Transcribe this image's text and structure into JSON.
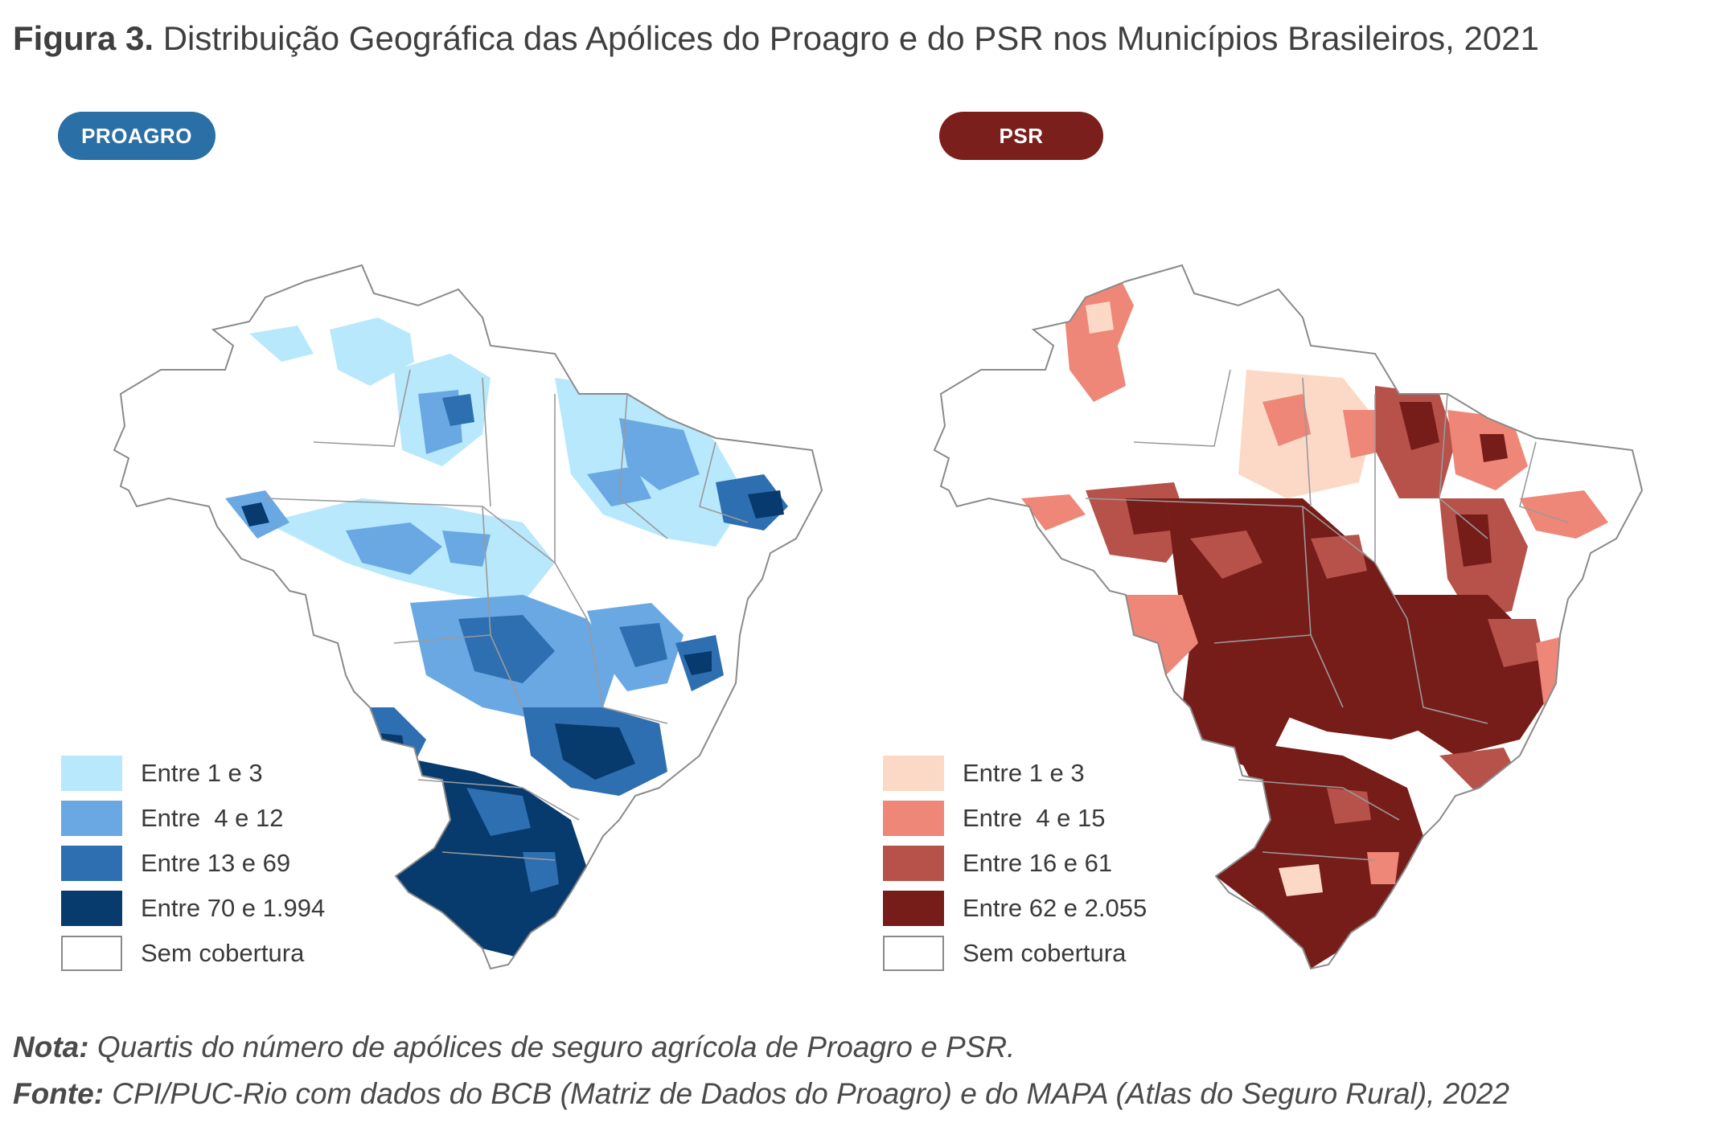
{
  "figure": {
    "label": "Figura 3.",
    "title": "Distribuição Geográfica das Apólices do Proagro e do PSR nos Municípios Brasileiros, 2021"
  },
  "maps": [
    {
      "id": "proagro",
      "badge": "PROAGRO",
      "badge_color": "#2a6fa6",
      "classes": [
        {
          "label": "Entre 1 e 3",
          "color": "#b7e8fb"
        },
        {
          "label": "Entre  4 e 12",
          "color": "#6aa8e4"
        },
        {
          "label": "Entre 13 e 69",
          "color": "#2d6fb0"
        },
        {
          "label": "Entre 70 e 1.994",
          "color": "#073a6d"
        },
        {
          "label": "Sem cobertura",
          "color": "#ffffff"
        }
      ]
    },
    {
      "id": "psr",
      "badge": "PSR",
      "badge_color": "#7a1f1c",
      "classes": [
        {
          "label": "Entre 1 e 3",
          "color": "#fcd9c6"
        },
        {
          "label": "Entre  4 e 15",
          "color": "#ee8777"
        },
        {
          "label": "Entre 16 e 61",
          "color": "#b6524a"
        },
        {
          "label": "Entre 62 e 2.055",
          "color": "#761c19"
        },
        {
          "label": "Sem cobertura",
          "color": "#ffffff"
        }
      ]
    }
  ],
  "notes": {
    "nota_label": "Nota:",
    "nota_text": " Quartis do número de apólices de seguro agrícola de Proagro e PSR.",
    "fonte_label": "Fonte:",
    "fonte_text": " CPI/PUC-Rio com dados do BCB (Matriz de Dados do Proagro) e do MAPA (Atlas do Seguro Rural), 2022"
  }
}
